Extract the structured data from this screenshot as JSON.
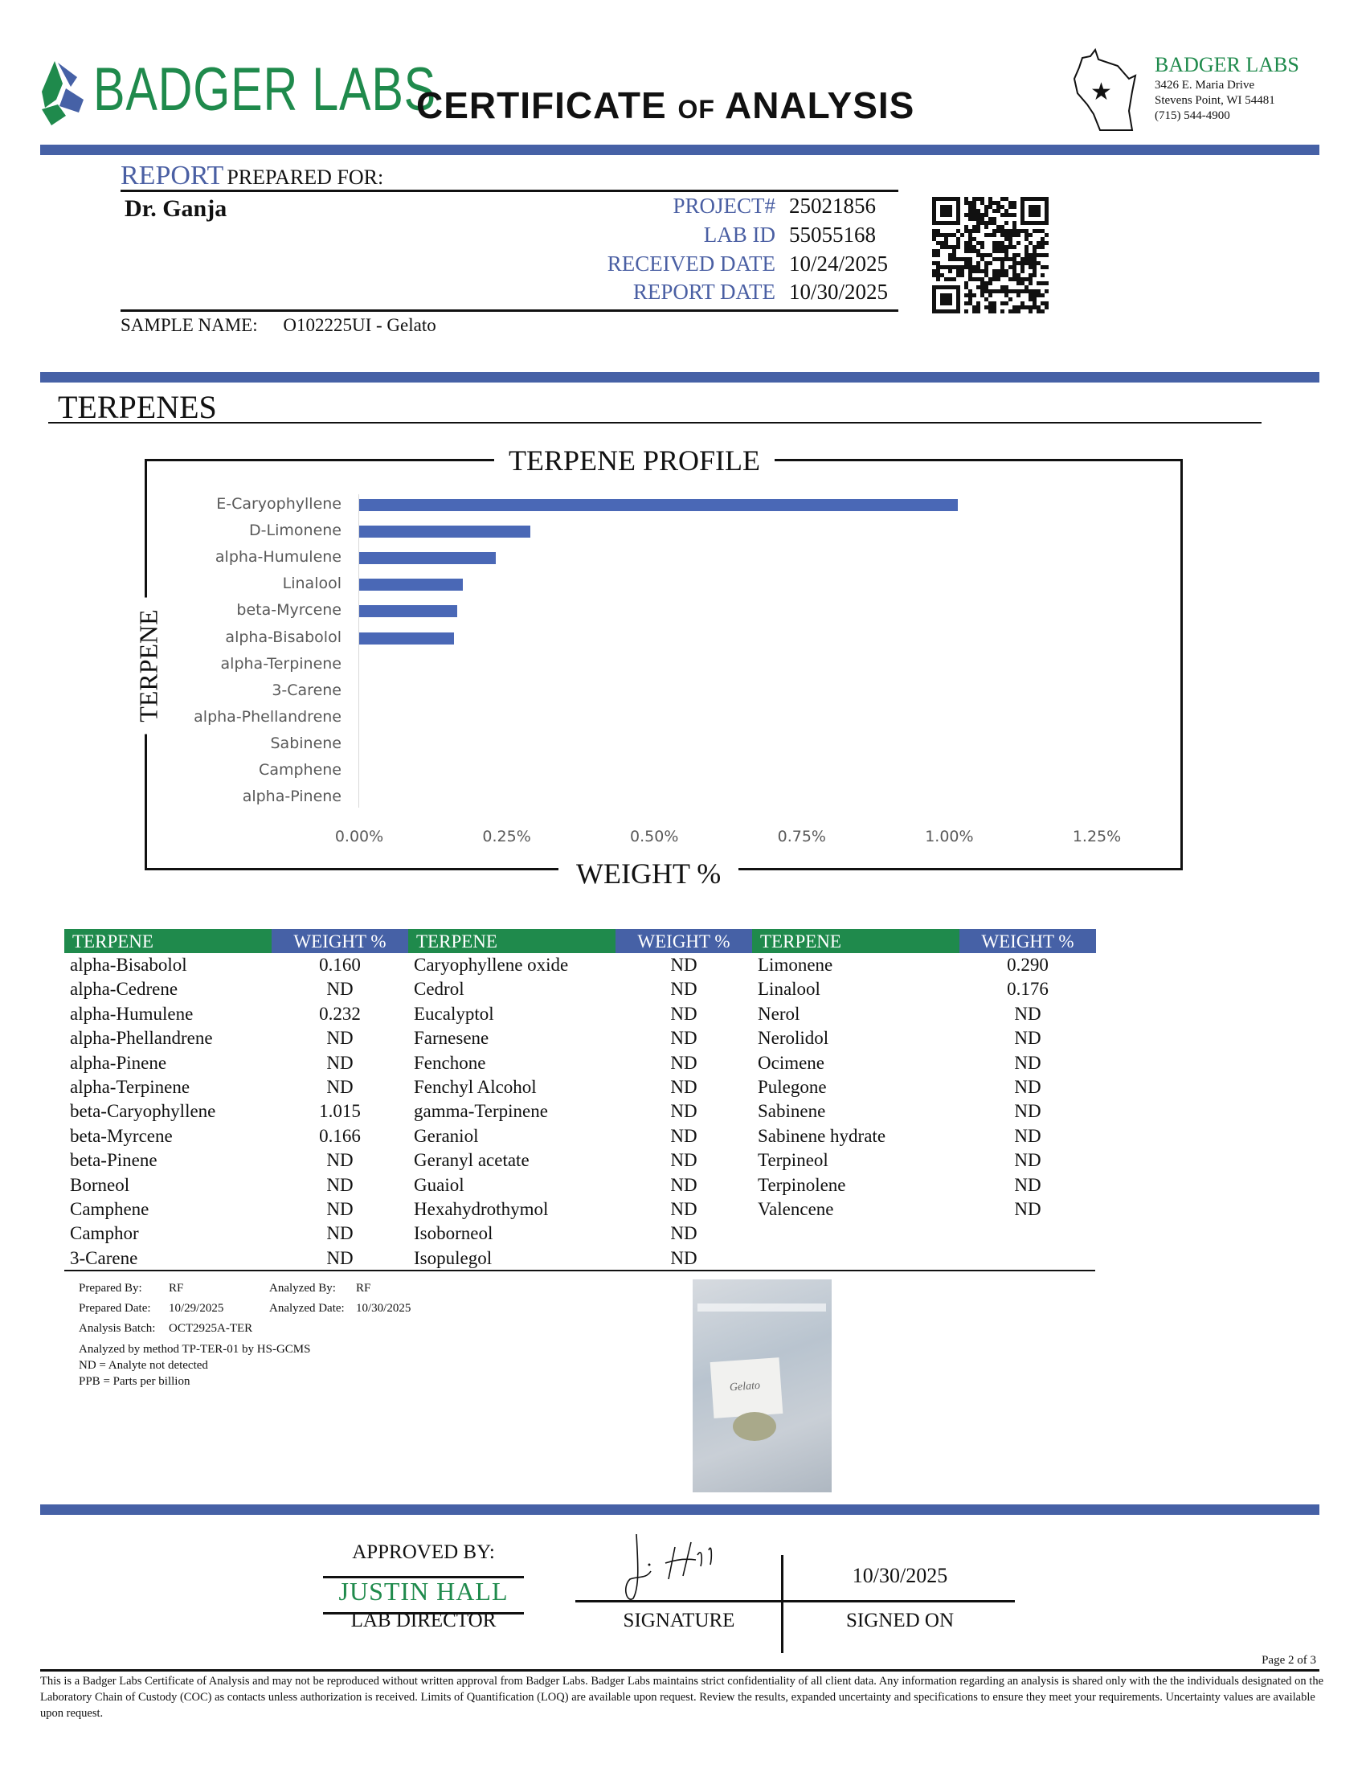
{
  "header": {
    "logo_text": "BADGER LABS",
    "title_a": "CERTIFICATE",
    "title_of": "OF",
    "title_b": "ANALYSIS",
    "address": {
      "name": "BADGER LABS",
      "street": "3426 E. Maria Drive",
      "city": "Stevens Point, WI 54481",
      "phone": "(715) 544-4900"
    }
  },
  "report": {
    "heading_a": "REPORT",
    "heading_b": "PREPARED FOR:",
    "client": "Dr. Ganja",
    "fields": [
      {
        "label": "PROJECT#",
        "value": "25021856"
      },
      {
        "label": "LAB ID",
        "value": "55055168"
      },
      {
        "label": "RECEIVED DATE",
        "value": "10/24/2025"
      },
      {
        "label": "REPORT DATE",
        "value": "10/30/2025"
      }
    ],
    "sample_label": "SAMPLE NAME:",
    "sample_value": "O102225UI - Gelato"
  },
  "section_title": "TERPENES",
  "chart_data": {
    "type": "bar",
    "orientation": "horizontal",
    "title": "TERPENE PROFILE",
    "xlabel": "WEIGHT %",
    "ylabel": "TERPENE",
    "categories": [
      "E-Caryophyllene",
      "D-Limonene",
      "alpha-Humulene",
      "Linalool",
      "beta-Myrcene",
      "alpha-Bisabolol",
      "alpha-Terpinene",
      "3-Carene",
      "alpha-Phellandrene",
      "Sabinene",
      "Camphene",
      "alpha-Pinene"
    ],
    "values": [
      1.015,
      0.29,
      0.232,
      0.176,
      0.166,
      0.16,
      0,
      0,
      0,
      0,
      0,
      0
    ],
    "xlim": [
      0,
      1.25
    ],
    "ticks": [
      "0.00%",
      "0.25%",
      "0.50%",
      "0.75%",
      "1.00%",
      "1.25%"
    ],
    "grid": false,
    "color": "#4a68b6"
  },
  "table": {
    "header_name": "TERPENE",
    "header_weight": "WEIGHT %",
    "columns": [
      [
        [
          "alpha-Bisabolol",
          "0.160"
        ],
        [
          "alpha-Cedrene",
          "ND"
        ],
        [
          "alpha-Humulene",
          "0.232"
        ],
        [
          "alpha-Phellandrene",
          "ND"
        ],
        [
          "alpha-Pinene",
          "ND"
        ],
        [
          "alpha-Terpinene",
          "ND"
        ],
        [
          "beta-Caryophyllene",
          "1.015"
        ],
        [
          "beta-Myrcene",
          "0.166"
        ],
        [
          "beta-Pinene",
          "ND"
        ],
        [
          "Borneol",
          "ND"
        ],
        [
          "Camphene",
          "ND"
        ],
        [
          "Camphor",
          "ND"
        ],
        [
          "3-Carene",
          "ND"
        ]
      ],
      [
        [
          "Caryophyllene oxide",
          "ND"
        ],
        [
          "Cedrol",
          "ND"
        ],
        [
          "Eucalyptol",
          "ND"
        ],
        [
          "Farnesene",
          "ND"
        ],
        [
          "Fenchone",
          "ND"
        ],
        [
          "Fenchyl Alcohol",
          "ND"
        ],
        [
          "gamma-Terpinene",
          "ND"
        ],
        [
          "Geraniol",
          "ND"
        ],
        [
          "Geranyl acetate",
          "ND"
        ],
        [
          "Guaiol",
          "ND"
        ],
        [
          "Hexahydrothymol",
          "ND"
        ],
        [
          "Isoborneol",
          "ND"
        ],
        [
          "Isopulegol",
          "ND"
        ]
      ],
      [
        [
          "Limonene",
          "0.290"
        ],
        [
          "Linalool",
          "0.176"
        ],
        [
          "Nerol",
          "ND"
        ],
        [
          "Nerolidol",
          "ND"
        ],
        [
          "Ocimene",
          "ND"
        ],
        [
          "Pulegone",
          "ND"
        ],
        [
          "Sabinene",
          "ND"
        ],
        [
          "Sabinene hydrate",
          "ND"
        ],
        [
          "Terpineol",
          "ND"
        ],
        [
          "Terpinolene",
          "ND"
        ],
        [
          "Valencene",
          "ND"
        ]
      ]
    ]
  },
  "info": {
    "prepared_by_label": "Prepared By:",
    "prepared_by": "RF",
    "analyzed_by_label": "Analyzed By:",
    "analyzed_by": "RF",
    "prepared_date_label": "Prepared Date:",
    "prepared_date": "10/29/2025",
    "analyzed_date_label": "Analyzed Date:",
    "analyzed_date": "10/30/2025",
    "batch_label": "Analysis Batch:",
    "batch": "OCT2925A-TER",
    "method": "Analyzed by method TP-TER-01 by HS-GCMS",
    "nd_note": "ND = Analyte not detected",
    "ppb_note": "PPB = Parts per billion",
    "photo_label": "Gelato"
  },
  "approval": {
    "approved_by": "APPROVED BY:",
    "name": "JUSTIN HALL",
    "role": "LAB DIRECTOR",
    "signature_label": "SIGNATURE",
    "signed_on_label": "SIGNED ON",
    "signed_date": "10/30/2025"
  },
  "footer": {
    "page": "Page 2 of 3",
    "disclaimer": "This is a Badger Labs Certificate of Analysis and may not be reproduced without written approval from Badger Labs. Badger Labs maintains strict confidentiality of all client data. Any information regarding an analysis is shared only with the the individuals designated on the Laboratory Chain of Custody (COC) as contacts unless authorization is received. Limits of Quantification (LOQ) are available upon request. Review the results, expanded uncertainty and specifications to ensure they meet your requirements. Uncertainty values are available upon request."
  }
}
